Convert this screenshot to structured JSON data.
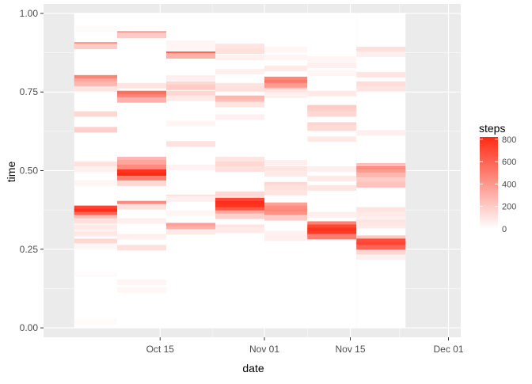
{
  "chart_data": {
    "type": "heatmap",
    "title": "",
    "xlabel": "date",
    "ylabel": "time",
    "x_tick_labels": [
      "Oct 15",
      "Nov 01",
      "Nov 15",
      "Dec 01"
    ],
    "x_tick_dates": [
      "2012-10-15",
      "2012-11-01",
      "2012-11-15",
      "2012-12-01"
    ],
    "x_range": [
      "2012-09-26",
      "2012-12-03"
    ],
    "y_tick_labels": [
      "0.00",
      "0.25",
      "0.50",
      "0.75",
      "1.00"
    ],
    "y_ticks": [
      0,
      0.25,
      0.5,
      0.75,
      1.0
    ],
    "ylim": [
      -0.03,
      1.03
    ],
    "grid": true,
    "legend": {
      "title": "steps",
      "position": "right",
      "labels": [
        "800",
        "600",
        "400",
        "200",
        "0"
      ],
      "values": [
        800,
        600,
        400,
        200,
        0
      ],
      "range": [
        0,
        820
      ],
      "low_color": "#FFFFFF",
      "high_color": "#FF2A14"
    },
    "columns": [
      {
        "start": "2012-10-01",
        "end": "2012-10-08",
        "bands": [
          [
            0.95,
            15
          ],
          [
            0.9,
            420
          ],
          [
            0.895,
            200
          ],
          [
            0.795,
            480
          ],
          [
            0.785,
            350
          ],
          [
            0.775,
            280
          ],
          [
            0.76,
            100
          ],
          [
            0.68,
            150
          ],
          [
            0.63,
            180
          ],
          [
            0.52,
            110
          ],
          [
            0.505,
            60
          ],
          [
            0.46,
            40
          ],
          [
            0.38,
            720
          ],
          [
            0.37,
            800
          ],
          [
            0.36,
            600
          ],
          [
            0.35,
            260
          ],
          [
            0.34,
            120
          ],
          [
            0.32,
            80
          ],
          [
            0.3,
            90
          ],
          [
            0.275,
            150
          ],
          [
            0.26,
            40
          ],
          [
            0.17,
            15
          ],
          [
            0.02,
            15
          ]
        ]
      },
      {
        "start": "2012-10-08",
        "end": "2012-10-16",
        "bands": [
          [
            0.935,
            380
          ],
          [
            0.93,
            200
          ],
          [
            0.77,
            100
          ],
          [
            0.745,
            560
          ],
          [
            0.735,
            480
          ],
          [
            0.725,
            300
          ],
          [
            0.535,
            280
          ],
          [
            0.525,
            350
          ],
          [
            0.51,
            450
          ],
          [
            0.495,
            780
          ],
          [
            0.485,
            820
          ],
          [
            0.475,
            500
          ],
          [
            0.46,
            150
          ],
          [
            0.395,
            450
          ],
          [
            0.385,
            120
          ],
          [
            0.34,
            60
          ],
          [
            0.29,
            60
          ],
          [
            0.255,
            120
          ],
          [
            0.145,
            40
          ],
          [
            0.12,
            30
          ]
        ]
      },
      {
        "start": "2012-10-16",
        "end": "2012-10-24",
        "bands": [
          [
            0.905,
            40
          ],
          [
            0.89,
            40
          ],
          [
            0.87,
            600
          ],
          [
            0.865,
            300
          ],
          [
            0.795,
            60
          ],
          [
            0.775,
            150
          ],
          [
            0.765,
            200
          ],
          [
            0.745,
            150
          ],
          [
            0.73,
            80
          ],
          [
            0.65,
            40
          ],
          [
            0.585,
            110
          ],
          [
            0.51,
            50
          ],
          [
            0.415,
            120
          ],
          [
            0.41,
            60
          ],
          [
            0.365,
            40
          ],
          [
            0.325,
            370
          ],
          [
            0.315,
            300
          ],
          [
            0.305,
            80
          ]
        ]
      },
      {
        "start": "2012-10-24",
        "end": "2012-11-01",
        "bands": [
          [
            0.895,
            100
          ],
          [
            0.88,
            120
          ],
          [
            0.86,
            60
          ],
          [
            0.815,
            60
          ],
          [
            0.77,
            100
          ],
          [
            0.76,
            120
          ],
          [
            0.73,
            280
          ],
          [
            0.72,
            250
          ],
          [
            0.71,
            100
          ],
          [
            0.67,
            60
          ],
          [
            0.535,
            100
          ],
          [
            0.52,
            150
          ],
          [
            0.505,
            120
          ],
          [
            0.425,
            150
          ],
          [
            0.405,
            720
          ],
          [
            0.395,
            800
          ],
          [
            0.385,
            780
          ],
          [
            0.375,
            650
          ],
          [
            0.365,
            350
          ],
          [
            0.355,
            180
          ],
          [
            0.32,
            100
          ],
          [
            0.31,
            80
          ]
        ]
      },
      {
        "start": "2012-11-01",
        "end": "2012-11-08",
        "bands": [
          [
            0.885,
            40
          ],
          [
            0.86,
            40
          ],
          [
            0.825,
            80
          ],
          [
            0.79,
            460
          ],
          [
            0.78,
            520
          ],
          [
            0.77,
            380
          ],
          [
            0.755,
            200
          ],
          [
            0.75,
            100
          ],
          [
            0.74,
            60
          ],
          [
            0.525,
            60
          ],
          [
            0.505,
            100
          ],
          [
            0.49,
            80
          ],
          [
            0.455,
            150
          ],
          [
            0.445,
            120
          ],
          [
            0.43,
            100
          ],
          [
            0.39,
            370
          ],
          [
            0.38,
            440
          ],
          [
            0.37,
            460
          ],
          [
            0.36,
            420
          ],
          [
            0.35,
            200
          ],
          [
            0.3,
            50
          ],
          [
            0.285,
            60
          ]
        ]
      },
      {
        "start": "2012-11-08",
        "end": "2012-11-16",
        "bands": [
          [
            0.855,
            40
          ],
          [
            0.835,
            60
          ],
          [
            0.81,
            40
          ],
          [
            0.745,
            80
          ],
          [
            0.7,
            200
          ],
          [
            0.69,
            180
          ],
          [
            0.68,
            150
          ],
          [
            0.645,
            160
          ],
          [
            0.635,
            140
          ],
          [
            0.6,
            80
          ],
          [
            0.505,
            60
          ],
          [
            0.475,
            80
          ],
          [
            0.445,
            100
          ],
          [
            0.36,
            60
          ],
          [
            0.33,
            480
          ],
          [
            0.32,
            700
          ],
          [
            0.31,
            780
          ],
          [
            0.3,
            760
          ],
          [
            0.29,
            500
          ]
        ]
      },
      {
        "start": "2012-11-16",
        "end": "2012-11-24",
        "bands": [
          [
            0.885,
            120
          ],
          [
            0.87,
            60
          ],
          [
            0.805,
            100
          ],
          [
            0.775,
            130
          ],
          [
            0.76,
            100
          ],
          [
            0.62,
            60
          ],
          [
            0.515,
            250
          ],
          [
            0.505,
            450
          ],
          [
            0.495,
            380
          ],
          [
            0.485,
            280
          ],
          [
            0.47,
            200
          ],
          [
            0.455,
            230
          ],
          [
            0.375,
            100
          ],
          [
            0.36,
            80
          ],
          [
            0.345,
            60
          ],
          [
            0.335,
            100
          ],
          [
            0.325,
            80
          ],
          [
            0.285,
            220
          ],
          [
            0.275,
            680
          ],
          [
            0.265,
            720
          ],
          [
            0.255,
            600
          ],
          [
            0.24,
            160
          ],
          [
            0.225,
            60
          ]
        ]
      }
    ]
  }
}
